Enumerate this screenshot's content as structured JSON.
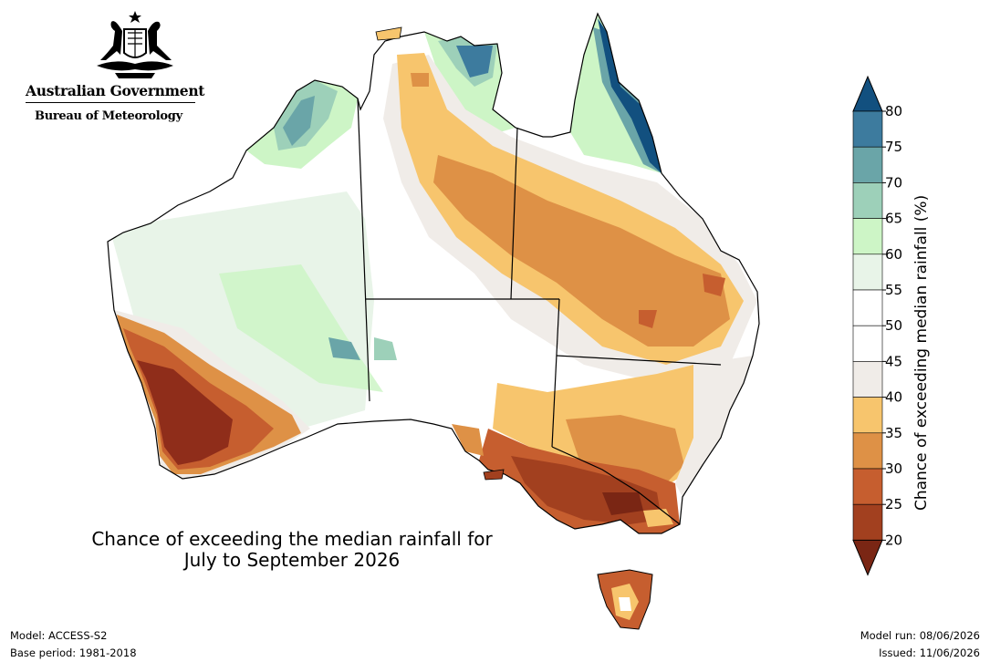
{
  "logo": {
    "government": "Australian Government",
    "bureau": "Bureau of Meteorology",
    "crest": "commonwealth-coat-of-arms"
  },
  "map": {
    "title_line1": "Chance of exceeding the median rainfall for",
    "title_line2": "July to September 2026",
    "regions": [
      {
        "name": "south-west-wa",
        "category": "20-25",
        "color": "#8f2d1a"
      },
      {
        "name": "south-coast-wa",
        "category": "25-30",
        "color": "#c0582a"
      },
      {
        "name": "victoria-south-sa",
        "category": "20-25",
        "color": "#a2401f"
      },
      {
        "name": "central-nsw-qld",
        "category": "30-35",
        "color": "#dc8e43"
      },
      {
        "name": "inland-qld-nsw",
        "category": "35-40",
        "color": "#f7c46c"
      },
      {
        "name": "east-qld-coast",
        "category": "75-80",
        "color": "#12507f"
      },
      {
        "name": "kimberley",
        "category": "70-75",
        "color": "#6aa5a8"
      },
      {
        "name": "central-wa",
        "category": "55-60",
        "color": "#e8f4e8"
      }
    ]
  },
  "colorbar": {
    "label": "Chance of exceeding median rainfall (%)",
    "ticks": [
      "20",
      "25",
      "30",
      "35",
      "40",
      "45",
      "50",
      "55",
      "60",
      "65",
      "70",
      "75",
      "80"
    ],
    "colors": {
      "below20": "#7a2614",
      "20-25": "#a2401f",
      "25-30": "#c65e2f",
      "30-35": "#de9146",
      "35-40": "#f7c56d",
      "40-45": "#f0ece8",
      "45-50": "#ffffff",
      "50-55": "#ffffff",
      "55-60": "#e8f4e8",
      "60-65": "#cdf5c6",
      "65-70": "#9dd0b9",
      "70-75": "#6aa5a8",
      "75-80": "#3d7b9e",
      "above80": "#12507f"
    }
  },
  "footer": {
    "model": "Model: ACCESS-S2",
    "base_period": "Base period: 1981-2018",
    "model_run": "Model run: 08/06/2026",
    "issued": "Issued: 11/06/2026"
  }
}
